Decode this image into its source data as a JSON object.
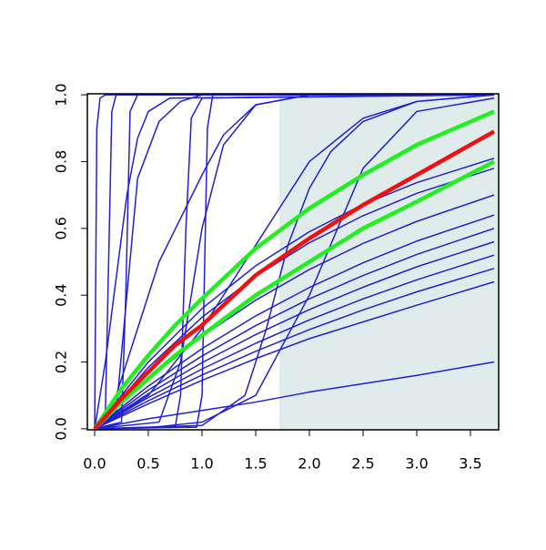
{
  "chart_data": {
    "type": "line",
    "xlim": [
      -0.068,
      3.763
    ],
    "ylim": [
      -0.003,
      1.003
    ],
    "xticks": [
      {
        "value": 0,
        "label": "0.0"
      },
      0.5,
      {
        "value": 1,
        "label": "1.0"
      },
      1.5,
      {
        "value": 2,
        "label": "2.0"
      },
      2.5,
      {
        "value": 3,
        "label": "3.0"
      },
      3.5
    ],
    "yticks": [
      {
        "value": 0,
        "label": "0.0"
      },
      0.2,
      0.4,
      0.6,
      0.8,
      {
        "value": 1,
        "label": "1.0"
      }
    ],
    "shade": {
      "xlim": [
        1.72,
        3.763
      ],
      "color": "#e0ecec"
    },
    "series": [
      {
        "color": "#2020d0",
        "width": 1.5,
        "x": [
          0,
          0.5,
          1,
          1.5,
          2,
          2.5,
          3,
          3.72
        ],
        "values": [
          0,
          0.03,
          0.055,
          0.08,
          0.11,
          0.135,
          0.16,
          0.2
        ]
      },
      {
        "color": "#2020d0",
        "width": 1.5,
        "x": [
          0,
          0.5,
          1,
          1.5,
          2,
          2.5,
          3,
          3.72
        ],
        "values": [
          0,
          0.075,
          0.145,
          0.21,
          0.27,
          0.32,
          0.37,
          0.44
        ]
      },
      {
        "color": "#2020d0",
        "width": 1.5,
        "x": [
          0,
          0.5,
          1,
          1.5,
          2,
          2.5,
          3,
          3.72
        ],
        "values": [
          0,
          0.084,
          0.161,
          0.232,
          0.297,
          0.356,
          0.41,
          0.48
        ]
      },
      {
        "color": "#2020d0",
        "width": 1.5,
        "x": [
          0,
          0.5,
          1,
          1.5,
          2,
          2.5,
          3,
          3.72
        ],
        "values": [
          0,
          0.094,
          0.179,
          0.256,
          0.326,
          0.389,
          0.446,
          0.52
        ]
      },
      {
        "color": "#2020d0",
        "width": 1.5,
        "x": [
          0,
          0.5,
          1,
          1.5,
          2,
          2.5,
          3,
          3.72
        ],
        "values": [
          0,
          0.105,
          0.198,
          0.282,
          0.357,
          0.424,
          0.485,
          0.56
        ]
      },
      {
        "color": "#2020d0",
        "width": 1.5,
        "x": [
          0,
          0.5,
          1,
          1.5,
          2,
          2.5,
          3,
          3.72
        ],
        "values": [
          0,
          0.116,
          0.218,
          0.309,
          0.389,
          0.459,
          0.522,
          0.6
        ]
      },
      {
        "color": "#2020d0",
        "width": 1.5,
        "x": [
          0,
          0.5,
          1,
          1.5,
          2,
          2.5,
          3,
          3.72
        ],
        "values": [
          0,
          0.128,
          0.24,
          0.338,
          0.423,
          0.497,
          0.562,
          0.64
        ]
      },
      {
        "color": "#2020d0",
        "width": 1.5,
        "x": [
          0,
          0.5,
          1,
          1.5,
          2,
          2.5,
          3,
          3.72
        ],
        "values": [
          0,
          0.149,
          0.277,
          0.385,
          0.477,
          0.555,
          0.621,
          0.7
        ]
      },
      {
        "color": "#2020d0",
        "width": 1.5,
        "x": [
          0,
          0.5,
          1,
          1.5,
          2,
          2.5,
          3,
          3.72
        ],
        "values": [
          0,
          0.184,
          0.334,
          0.457,
          0.557,
          0.638,
          0.705,
          0.78
        ]
      },
      {
        "color": "#2020d0",
        "width": 1.5,
        "x": [
          0,
          0.5,
          1,
          1.5,
          2,
          2.5,
          3,
          3.72
        ],
        "values": [
          0,
          0.2,
          0.36,
          0.488,
          0.59,
          0.672,
          0.737,
          0.81
        ]
      },
      {
        "color": "#2020d0",
        "width": 1.5,
        "x": [
          0,
          0.02,
          0.05,
          0.1,
          3.72
        ],
        "values": [
          0,
          0.9,
          0.99,
          1,
          1
        ]
      },
      {
        "color": "#2020d0",
        "width": 1.5,
        "x": [
          0,
          0.1,
          0.13,
          0.16,
          0.2,
          3.72
        ],
        "values": [
          0,
          0.05,
          0.5,
          0.95,
          1,
          1
        ]
      },
      {
        "color": "#2020d0",
        "width": 1.5,
        "x": [
          0,
          0.25,
          0.29,
          0.33,
          0.4,
          3.72
        ],
        "values": [
          0,
          0.02,
          0.4,
          0.95,
          1,
          1
        ]
      },
      {
        "color": "#2020d0",
        "width": 1.5,
        "x": [
          0,
          0.1,
          0.2,
          0.3,
          0.4,
          0.5,
          0.7,
          3.72
        ],
        "values": [
          0,
          0.2,
          0.45,
          0.7,
          0.87,
          0.95,
          0.99,
          1
        ]
      },
      {
        "color": "#2020d0",
        "width": 1.5,
        "x": [
          0,
          0.2,
          0.3,
          0.4,
          0.6,
          0.8,
          1,
          3.72
        ],
        "values": [
          0,
          0.05,
          0.4,
          0.75,
          0.92,
          0.98,
          1,
          1
        ]
      },
      {
        "color": "#2020d0",
        "width": 1.5,
        "x": [
          0,
          0.2,
          0.4,
          0.6,
          0.8,
          1,
          1.2,
          1.5,
          2,
          3.72
        ],
        "values": [
          0,
          0.1,
          0.3,
          0.5,
          0.63,
          0.76,
          0.88,
          0.97,
          1,
          1
        ]
      },
      {
        "color": "#2020d0",
        "width": 1.5,
        "x": [
          0,
          0.75,
          0.8,
          0.85,
          0.9,
          1,
          3.72
        ],
        "values": [
          0,
          0.005,
          0.1,
          0.6,
          0.93,
          0.99,
          1
        ]
      },
      {
        "color": "#2020d0",
        "width": 1.5,
        "x": [
          0,
          0.95,
          1,
          1.05,
          1.1,
          3.72
        ],
        "values": [
          0,
          0.005,
          0.1,
          0.9,
          1,
          1
        ]
      },
      {
        "color": "#2020d0",
        "width": 1.5,
        "x": [
          0,
          0.6,
          0.8,
          1,
          1.2,
          1.5,
          2,
          3.72
        ],
        "values": [
          0,
          0.02,
          0.2,
          0.6,
          0.85,
          0.97,
          1,
          1
        ]
      },
      {
        "color": "#2020d0",
        "width": 1.5,
        "x": [
          0,
          1,
          1.4,
          1.6,
          1.8,
          2,
          2.2,
          2.5,
          3,
          3.72
        ],
        "values": [
          0,
          0.01,
          0.1,
          0.3,
          0.55,
          0.72,
          0.83,
          0.92,
          0.98,
          1
        ]
      },
      {
        "color": "#2020d0",
        "width": 1.5,
        "x": [
          0,
          0.5,
          1,
          1.5,
          2,
          2.5,
          3,
          3.72
        ],
        "values": [
          0,
          0.003,
          0.02,
          0.1,
          0.4,
          0.78,
          0.95,
          0.99
        ]
      },
      {
        "color": "#2020d0",
        "width": 1.5,
        "x": [
          0,
          0.5,
          1,
          1.5,
          2,
          2.5,
          3,
          3.72
        ],
        "values": [
          0,
          0.1,
          0.3,
          0.55,
          0.8,
          0.93,
          0.98,
          1
        ]
      },
      {
        "color": "#22ee22",
        "width": 4.5,
        "x": [
          0,
          0.25,
          0.5,
          0.75,
          1,
          1.5,
          2,
          2.5,
          3,
          3.72
        ],
        "values": [
          0,
          0.12,
          0.22,
          0.31,
          0.39,
          0.54,
          0.66,
          0.76,
          0.85,
          0.95
        ]
      },
      {
        "color": "#22ee22",
        "width": 4.5,
        "x": [
          0,
          0.25,
          0.5,
          0.75,
          1,
          1.5,
          2,
          2.5,
          3,
          3.72
        ],
        "values": [
          0,
          0.08,
          0.15,
          0.22,
          0.28,
          0.4,
          0.5,
          0.6,
          0.68,
          0.8
        ]
      },
      {
        "color": "#ee1111",
        "width": 4.5,
        "x": [
          0,
          0.25,
          0.5,
          0.75,
          1,
          1.5,
          2,
          2.5,
          3,
          3.72
        ],
        "values": [
          0,
          0.09,
          0.17,
          0.25,
          0.31,
          0.46,
          0.57,
          0.67,
          0.76,
          0.89
        ]
      }
    ]
  }
}
